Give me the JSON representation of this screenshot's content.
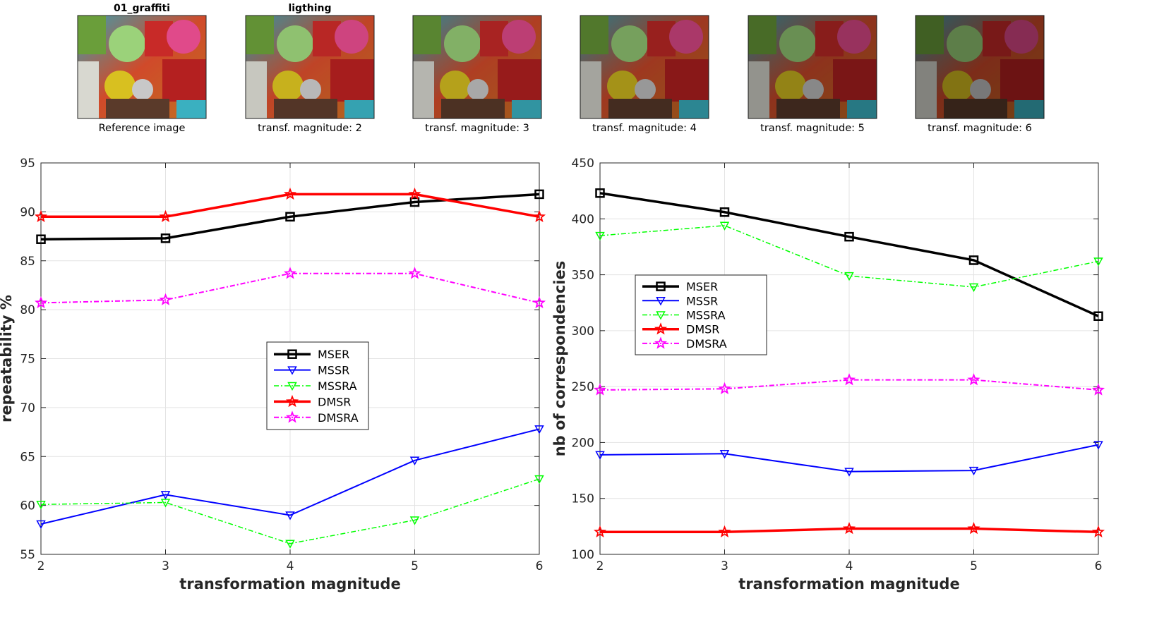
{
  "thumbnails": [
    {
      "title": "01_graffiti",
      "caption": "Reference image"
    },
    {
      "title": "ligthing",
      "caption": "transf. magnitude: 2"
    },
    {
      "title": "",
      "caption": "transf. magnitude: 3"
    },
    {
      "title": "",
      "caption": "transf. magnitude: 4"
    },
    {
      "title": "",
      "caption": "transf. magnitude: 5"
    },
    {
      "title": "",
      "caption": "transf. magnitude: 6"
    }
  ],
  "chart_data": [
    {
      "type": "line",
      "xlabel": "transformation magnitude",
      "ylabel": "repeatability %",
      "x": [
        2,
        3,
        4,
        5,
        6
      ],
      "xlim": [
        2,
        6
      ],
      "ylim": [
        55,
        95
      ],
      "xticks": [
        2,
        3,
        4,
        5,
        6
      ],
      "yticks": [
        55,
        60,
        65,
        70,
        75,
        80,
        85,
        90,
        95
      ],
      "grid": true,
      "legend_position": "center",
      "series": [
        {
          "name": "MSER",
          "color": "#000000",
          "marker": "square",
          "dash": "solid",
          "width": 3.5,
          "values": [
            87.2,
            87.3,
            89.5,
            91.0,
            91.8
          ]
        },
        {
          "name": "MSSR",
          "color": "#0000ff",
          "marker": "triangle-down",
          "dash": "solid",
          "width": 2,
          "values": [
            58.1,
            61.1,
            59.0,
            64.6,
            67.8
          ]
        },
        {
          "name": "MSSRA",
          "color": "#00ff00",
          "marker": "triangle-down",
          "dash": "dashdot",
          "width": 1.5,
          "values": [
            60.1,
            60.3,
            56.1,
            58.5,
            62.7
          ]
        },
        {
          "name": "DMSR",
          "color": "#ff0000",
          "marker": "star",
          "dash": "solid",
          "width": 3.5,
          "values": [
            89.5,
            89.5,
            91.8,
            91.8,
            89.5
          ]
        },
        {
          "name": "DMSRA",
          "color": "#ff00ff",
          "marker": "star",
          "dash": "dashdot",
          "width": 2,
          "values": [
            80.7,
            81.0,
            83.7,
            83.7,
            80.7
          ]
        }
      ]
    },
    {
      "type": "line",
      "xlabel": "transformation magnitude",
      "ylabel": "nb of correspondencies",
      "x": [
        2,
        3,
        4,
        5,
        6
      ],
      "xlim": [
        2,
        6
      ],
      "ylim": [
        100,
        450
      ],
      "xticks": [
        2,
        3,
        4,
        5,
        6
      ],
      "yticks": [
        100,
        150,
        200,
        250,
        300,
        350,
        400,
        450
      ],
      "grid": true,
      "legend_position": "upper-left",
      "series": [
        {
          "name": "MSER",
          "color": "#000000",
          "marker": "square",
          "dash": "solid",
          "width": 3.5,
          "values": [
            423,
            406,
            384,
            363,
            313
          ]
        },
        {
          "name": "MSSR",
          "color": "#0000ff",
          "marker": "triangle-down",
          "dash": "solid",
          "width": 2,
          "values": [
            189,
            190,
            174,
            175,
            198
          ]
        },
        {
          "name": "MSSRA",
          "color": "#00ff00",
          "marker": "triangle-down",
          "dash": "dashdot",
          "width": 1.5,
          "values": [
            385,
            394,
            349,
            339,
            362
          ]
        },
        {
          "name": "DMSR",
          "color": "#ff0000",
          "marker": "star",
          "dash": "solid",
          "width": 3.5,
          "values": [
            120,
            120,
            123,
            123,
            120
          ]
        },
        {
          "name": "DMSRA",
          "color": "#ff00ff",
          "marker": "star",
          "dash": "dashdot",
          "width": 2,
          "values": [
            247,
            248,
            256,
            256,
            247
          ]
        }
      ]
    }
  ]
}
